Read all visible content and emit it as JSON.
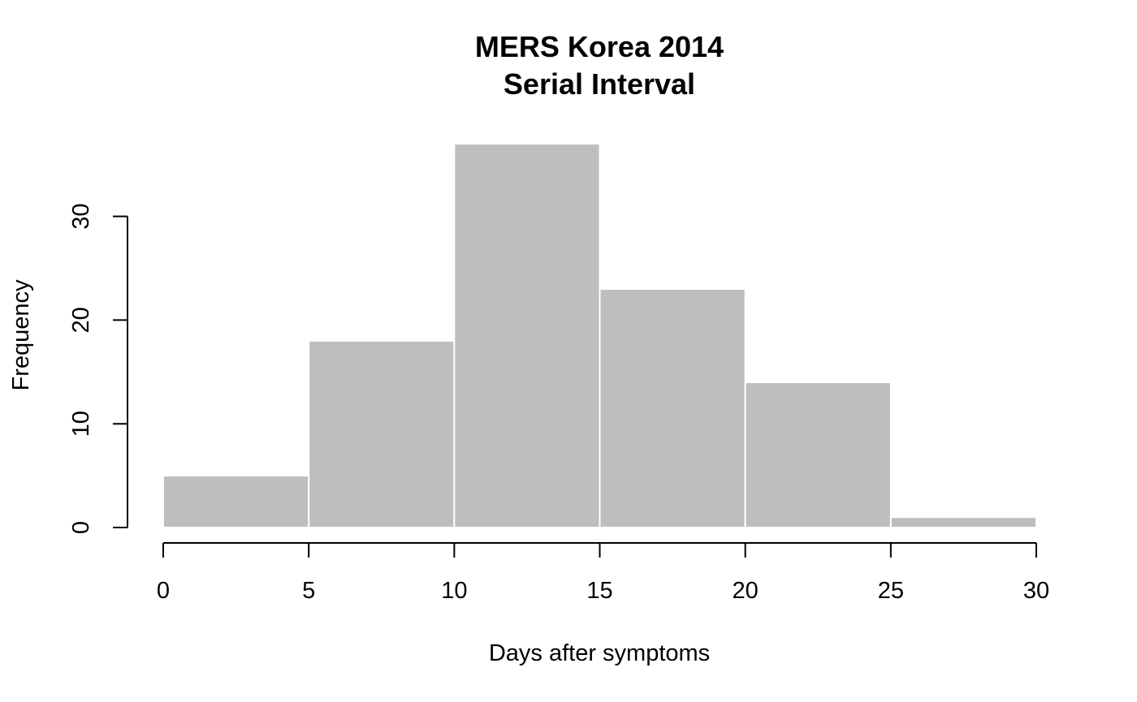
{
  "chart_data": {
    "type": "bar",
    "title": "MERS Korea 2014",
    "subtitle": "Serial Interval",
    "xlabel": "Days after symptoms",
    "ylabel": "Frequency",
    "bin_edges": [
      0,
      5,
      10,
      15,
      20,
      25,
      30
    ],
    "values": [
      5,
      18,
      37,
      23,
      14,
      1
    ],
    "xlim": [
      0,
      30
    ],
    "ylim": [
      0,
      37
    ],
    "x_ticks": [
      0,
      5,
      10,
      15,
      20,
      25,
      30
    ],
    "y_ticks": [
      0,
      10,
      20,
      30
    ],
    "grid": false,
    "bar_color": "#bebebe",
    "bar_border_color": "#ffffff"
  }
}
